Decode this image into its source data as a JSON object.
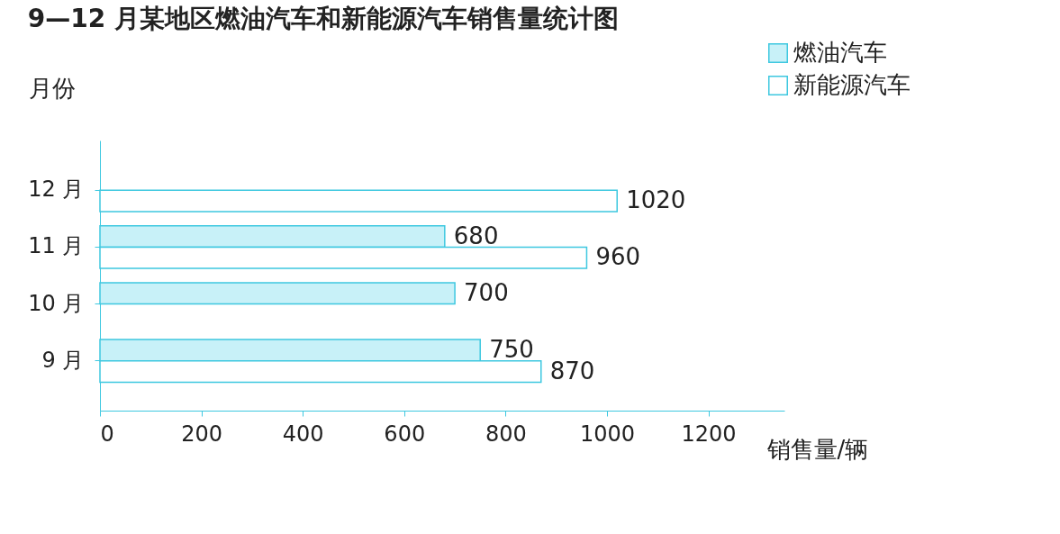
{
  "chart_data": {
    "type": "bar",
    "orientation": "horizontal",
    "title": "9—12 月某地区燃油汽车和新能源汽车销售量统计图",
    "xlabel": "销售量/辆",
    "ylabel": "月份",
    "categories": [
      "12 月",
      "11 月",
      "10 月",
      "9 月"
    ],
    "series": [
      {
        "name": "燃油汽车",
        "color": "#c8f1f8",
        "values": [
          null,
          680,
          700,
          750
        ]
      },
      {
        "name": "新能源汽车",
        "color": "#ffffff",
        "values": [
          1020,
          960,
          null,
          870
        ]
      }
    ],
    "xlim": [
      0,
      1350
    ],
    "xticks": [
      0,
      200,
      400,
      600,
      800,
      1000,
      1200
    ],
    "grid": false,
    "legend": "top right",
    "data_labels": true
  }
}
